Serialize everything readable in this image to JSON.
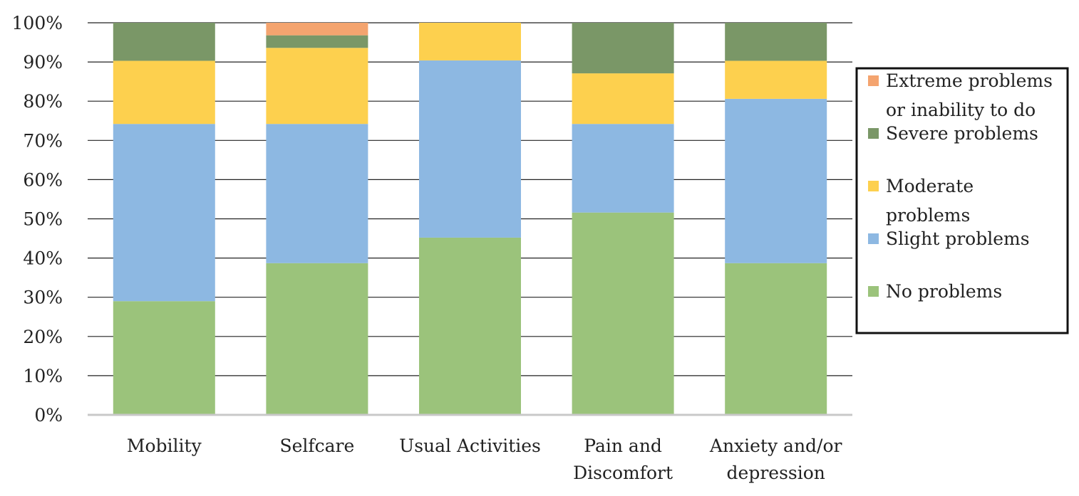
{
  "chart_data": {
    "type": "bar",
    "stacked": true,
    "title": "",
    "xlabel": "",
    "ylabel": "",
    "ylim": [
      0,
      100
    ],
    "yticks": [
      "0%",
      "10%",
      "20%",
      "30%",
      "40%",
      "50%",
      "60%",
      "70%",
      "80%",
      "90%",
      "100%"
    ],
    "categories": [
      [
        "Mobility"
      ],
      [
        "Selfcare"
      ],
      [
        "Usual Activities"
      ],
      [
        "Pain and",
        "Discomfort"
      ],
      [
        "Anxiety and/or",
        "depression"
      ]
    ],
    "series": [
      {
        "name": "No problems",
        "color": "#9bc37b",
        "values": [
          29,
          38.7,
          45.2,
          51.6,
          38.7
        ]
      },
      {
        "name": "Slight problems",
        "color": "#8db8e2",
        "values": [
          45.2,
          35.5,
          45.2,
          22.6,
          41.9
        ]
      },
      {
        "name": "Moderate problems",
        "color": "#fdd04e",
        "values": [
          16.1,
          19.4,
          9.6,
          12.9,
          9.7
        ]
      },
      {
        "name": "Severe problems",
        "color": "#7a9767",
        "values": [
          9.7,
          3.2,
          0,
          12.9,
          9.7
        ]
      },
      {
        "name": "Extreme problems or inability to do",
        "color": "#f4a46f",
        "values": [
          0,
          3.2,
          0,
          0,
          0
        ]
      }
    ],
    "legend": {
      "position": "right",
      "entries": [
        {
          "series": 4,
          "lines": [
            "Extreme problems",
            "or inability to do"
          ]
        },
        {
          "series": 3,
          "lines": [
            "Severe problems"
          ]
        },
        {
          "series": 2,
          "lines": [
            "Moderate",
            "problems"
          ]
        },
        {
          "series": 1,
          "lines": [
            "Slight problems"
          ]
        },
        {
          "series": 0,
          "lines": [
            "No problems"
          ]
        }
      ]
    },
    "grid": true
  }
}
